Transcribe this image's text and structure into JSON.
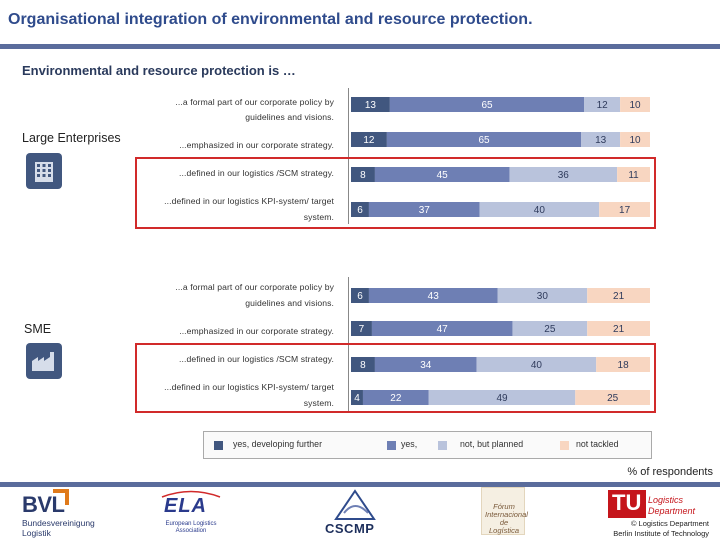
{
  "title": "Organisational integration of environmental and resource protection.",
  "subtitle": "Environmental and resource protection is …",
  "groups": [
    {
      "label": "Large Enterprises",
      "icon": "building-icon"
    },
    {
      "label": "SME",
      "icon": "factory-icon"
    }
  ],
  "questions": [
    {
      "line1": "...a formal part of our corporate policy by",
      "line2": "guidelines and visions."
    },
    {
      "line1": "...emphasized in our corporate strategy.",
      "line2": ""
    },
    {
      "line1": "...defined in our logistics /SCM strategy.",
      "line2": ""
    },
    {
      "line1": "...defined in our logistics KPI-system/ target",
      "line2": "system."
    }
  ],
  "chart_data": {
    "type": "bar",
    "orientation": "horizontal",
    "stacked": true,
    "unit": "% of respondents",
    "colors": [
      "#41577f",
      "#6e7fb4",
      "#b9c3dc",
      "#f8d6c1"
    ],
    "label_colors": [
      "#ffffff",
      "#ffffff",
      "#2f3b5c",
      "#2f3b5c"
    ],
    "series_names": [
      "yes, developing further",
      "yes,",
      "not, but planned",
      "not tackled"
    ],
    "groups": [
      {
        "name": "Large Enterprises",
        "rows": [
          {
            "question": "...a formal part of our corporate policy by guidelines and visions.",
            "values": [
              13,
              65,
              12,
              10
            ]
          },
          {
            "question": "...emphasized in our corporate strategy.",
            "values": [
              12,
              65,
              13,
              10
            ]
          },
          {
            "question": "...defined in our logistics /SCM strategy.",
            "values": [
              8,
              45,
              36,
              11
            ]
          },
          {
            "question": "...defined in our logistics KPI-system/ target system.",
            "values": [
              6,
              37,
              40,
              17
            ]
          }
        ]
      },
      {
        "name": "SME",
        "rows": [
          {
            "question": "...a formal part of our corporate policy by guidelines and visions.",
            "values": [
              6,
              43,
              30,
              21
            ]
          },
          {
            "question": "...emphasized in our corporate strategy.",
            "values": [
              7,
              47,
              25,
              21
            ]
          },
          {
            "question": "...defined in our logistics /SCM strategy.",
            "values": [
              8,
              34,
              40,
              18
            ]
          },
          {
            "question": "...defined in our logistics KPI-system/ target system.",
            "values": [
              4,
              22,
              49,
              25
            ]
          }
        ]
      }
    ],
    "xlim": [
      0,
      100
    ],
    "grid": false
  },
  "legend": {
    "items": [
      "yes, developing further",
      "yes,",
      "not, but planned",
      "not tackled"
    ]
  },
  "axis_note": "% of respondents",
  "footer": {
    "bvl_name": "BVL",
    "bvl_sub1": "Bundesvereinigung",
    "bvl_sub2": "Logistik",
    "ela_name": "ELA",
    "ela_sub": "European Logistics Association",
    "cscmp_name": "CSCMP",
    "forum_text": "Fórum Internacional de Logística",
    "tu_mark": "TU",
    "dept_line1": "Logistics",
    "dept_line2": "Department",
    "copyright_line1": "© Logistics Department",
    "copyright_line2": "Berlin Institute of Technology"
  }
}
